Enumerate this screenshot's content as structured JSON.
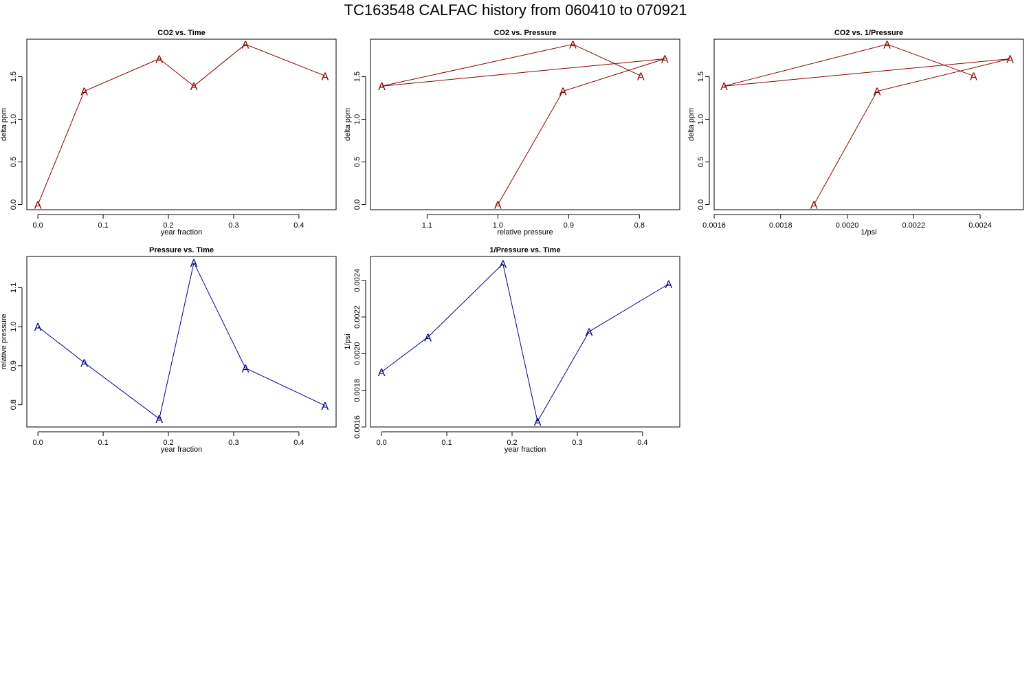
{
  "page": {
    "title": "TC163548   CALFAC history from  060410  to  070921"
  },
  "colors": {
    "co2": "#8b0000",
    "pressure": "#00008b",
    "axis": "#000000",
    "background": "#ffffff"
  },
  "marker": "A",
  "chart_data": [
    {
      "id": "co2-vs-time",
      "type": "line",
      "title": "CO2 vs. Time",
      "xlabel": "year fraction",
      "ylabel": "delta ppm",
      "color": "co2",
      "xlim": [
        -0.017,
        0.457
      ],
      "ylim": [
        -0.06,
        1.94
      ],
      "xticks": [
        0.0,
        0.1,
        0.2,
        0.3,
        0.4
      ],
      "xtick_labels": [
        "0.0",
        "0.1",
        "0.2",
        "0.3",
        "0.4"
      ],
      "yticks": [
        0.0,
        0.5,
        1.0,
        1.5
      ],
      "ytick_labels": [
        "0.0",
        "0.5",
        "1.0",
        "1.5"
      ],
      "x": [
        0.0,
        0.071,
        0.186,
        0.239,
        0.318,
        0.44
      ],
      "y": [
        0.0,
        1.33,
        1.71,
        1.39,
        1.88,
        1.51
      ]
    },
    {
      "id": "co2-vs-pressure",
      "type": "line",
      "title": "CO2 vs. Pressure",
      "xlabel": "relative pressure",
      "ylabel": "delta ppm",
      "color": "co2",
      "xlim": [
        1.18,
        0.743
      ],
      "ylim": [
        -0.06,
        1.94
      ],
      "xticks": [
        1.1,
        1.0,
        0.9,
        0.8
      ],
      "xtick_labels": [
        "1.1",
        "1.0",
        "0.9",
        "0.8"
      ],
      "yticks": [
        0.0,
        0.5,
        1.0,
        1.5
      ],
      "ytick_labels": [
        "0.0",
        "0.5",
        "1.0",
        "1.5"
      ],
      "x": [
        1.0,
        0.908,
        0.764,
        1.164,
        0.894,
        0.798
      ],
      "y": [
        0.0,
        1.33,
        1.71,
        1.39,
        1.88,
        1.51
      ]
    },
    {
      "id": "co2-vs-inv-pressure",
      "type": "line",
      "title": "CO2 vs. 1/Pressure",
      "xlabel": "1/psi",
      "ylabel": "delta ppm",
      "color": "co2",
      "xlim": [
        0.0016,
        0.00253
      ],
      "ylim": [
        -0.06,
        1.94
      ],
      "xticks": [
        0.0016,
        0.0018,
        0.002,
        0.0022,
        0.0024
      ],
      "xtick_labels": [
        "0.0016",
        "0.0018",
        "0.0020",
        "0.0022",
        "0.0024"
      ],
      "yticks": [
        0.0,
        0.5,
        1.0,
        1.5
      ],
      "ytick_labels": [
        "0.0",
        "0.5",
        "1.0",
        "1.5"
      ],
      "x": [
        0.0019,
        0.00209,
        0.00249,
        0.00163,
        0.00212,
        0.00238
      ],
      "y": [
        0.0,
        1.33,
        1.71,
        1.39,
        1.88,
        1.51
      ]
    },
    {
      "id": "pressure-vs-time",
      "type": "line",
      "title": "Pressure vs. Time",
      "xlabel": "year fraction",
      "ylabel": "relative pressure",
      "color": "pressure",
      "xlim": [
        -0.017,
        0.457
      ],
      "ylim": [
        0.743,
        1.18
      ],
      "xticks": [
        0.0,
        0.1,
        0.2,
        0.3,
        0.4
      ],
      "xtick_labels": [
        "0.0",
        "0.1",
        "0.2",
        "0.3",
        "0.4"
      ],
      "yticks": [
        0.8,
        0.9,
        1.0,
        1.1
      ],
      "ytick_labels": [
        "0.8",
        "0.9",
        "1.0",
        "1.1"
      ],
      "x": [
        0.0,
        0.071,
        0.186,
        0.239,
        0.318,
        0.44
      ],
      "y": [
        1.0,
        0.908,
        0.764,
        1.164,
        0.894,
        0.798
      ]
    },
    {
      "id": "inv-pressure-vs-time",
      "type": "line",
      "title": "1/Pressure vs. Time",
      "xlabel": "year fraction",
      "ylabel": "1/psi",
      "color": "pressure",
      "xlim": [
        -0.017,
        0.457
      ],
      "ylim": [
        0.0016,
        0.00253
      ],
      "xticks": [
        0.0,
        0.1,
        0.2,
        0.3,
        0.4
      ],
      "xtick_labels": [
        "0.0",
        "0.1",
        "0.2",
        "0.3",
        "0.4"
      ],
      "yticks": [
        0.0016,
        0.0018,
        0.002,
        0.0022,
        0.0024
      ],
      "ytick_labels": [
        "0.0016",
        "0.0018",
        "0.0020",
        "0.0022",
        "0.0024"
      ],
      "x": [
        0.0,
        0.071,
        0.186,
        0.239,
        0.318,
        0.44
      ],
      "y": [
        0.0019,
        0.00209,
        0.00249,
        0.00163,
        0.00212,
        0.00238
      ]
    }
  ]
}
